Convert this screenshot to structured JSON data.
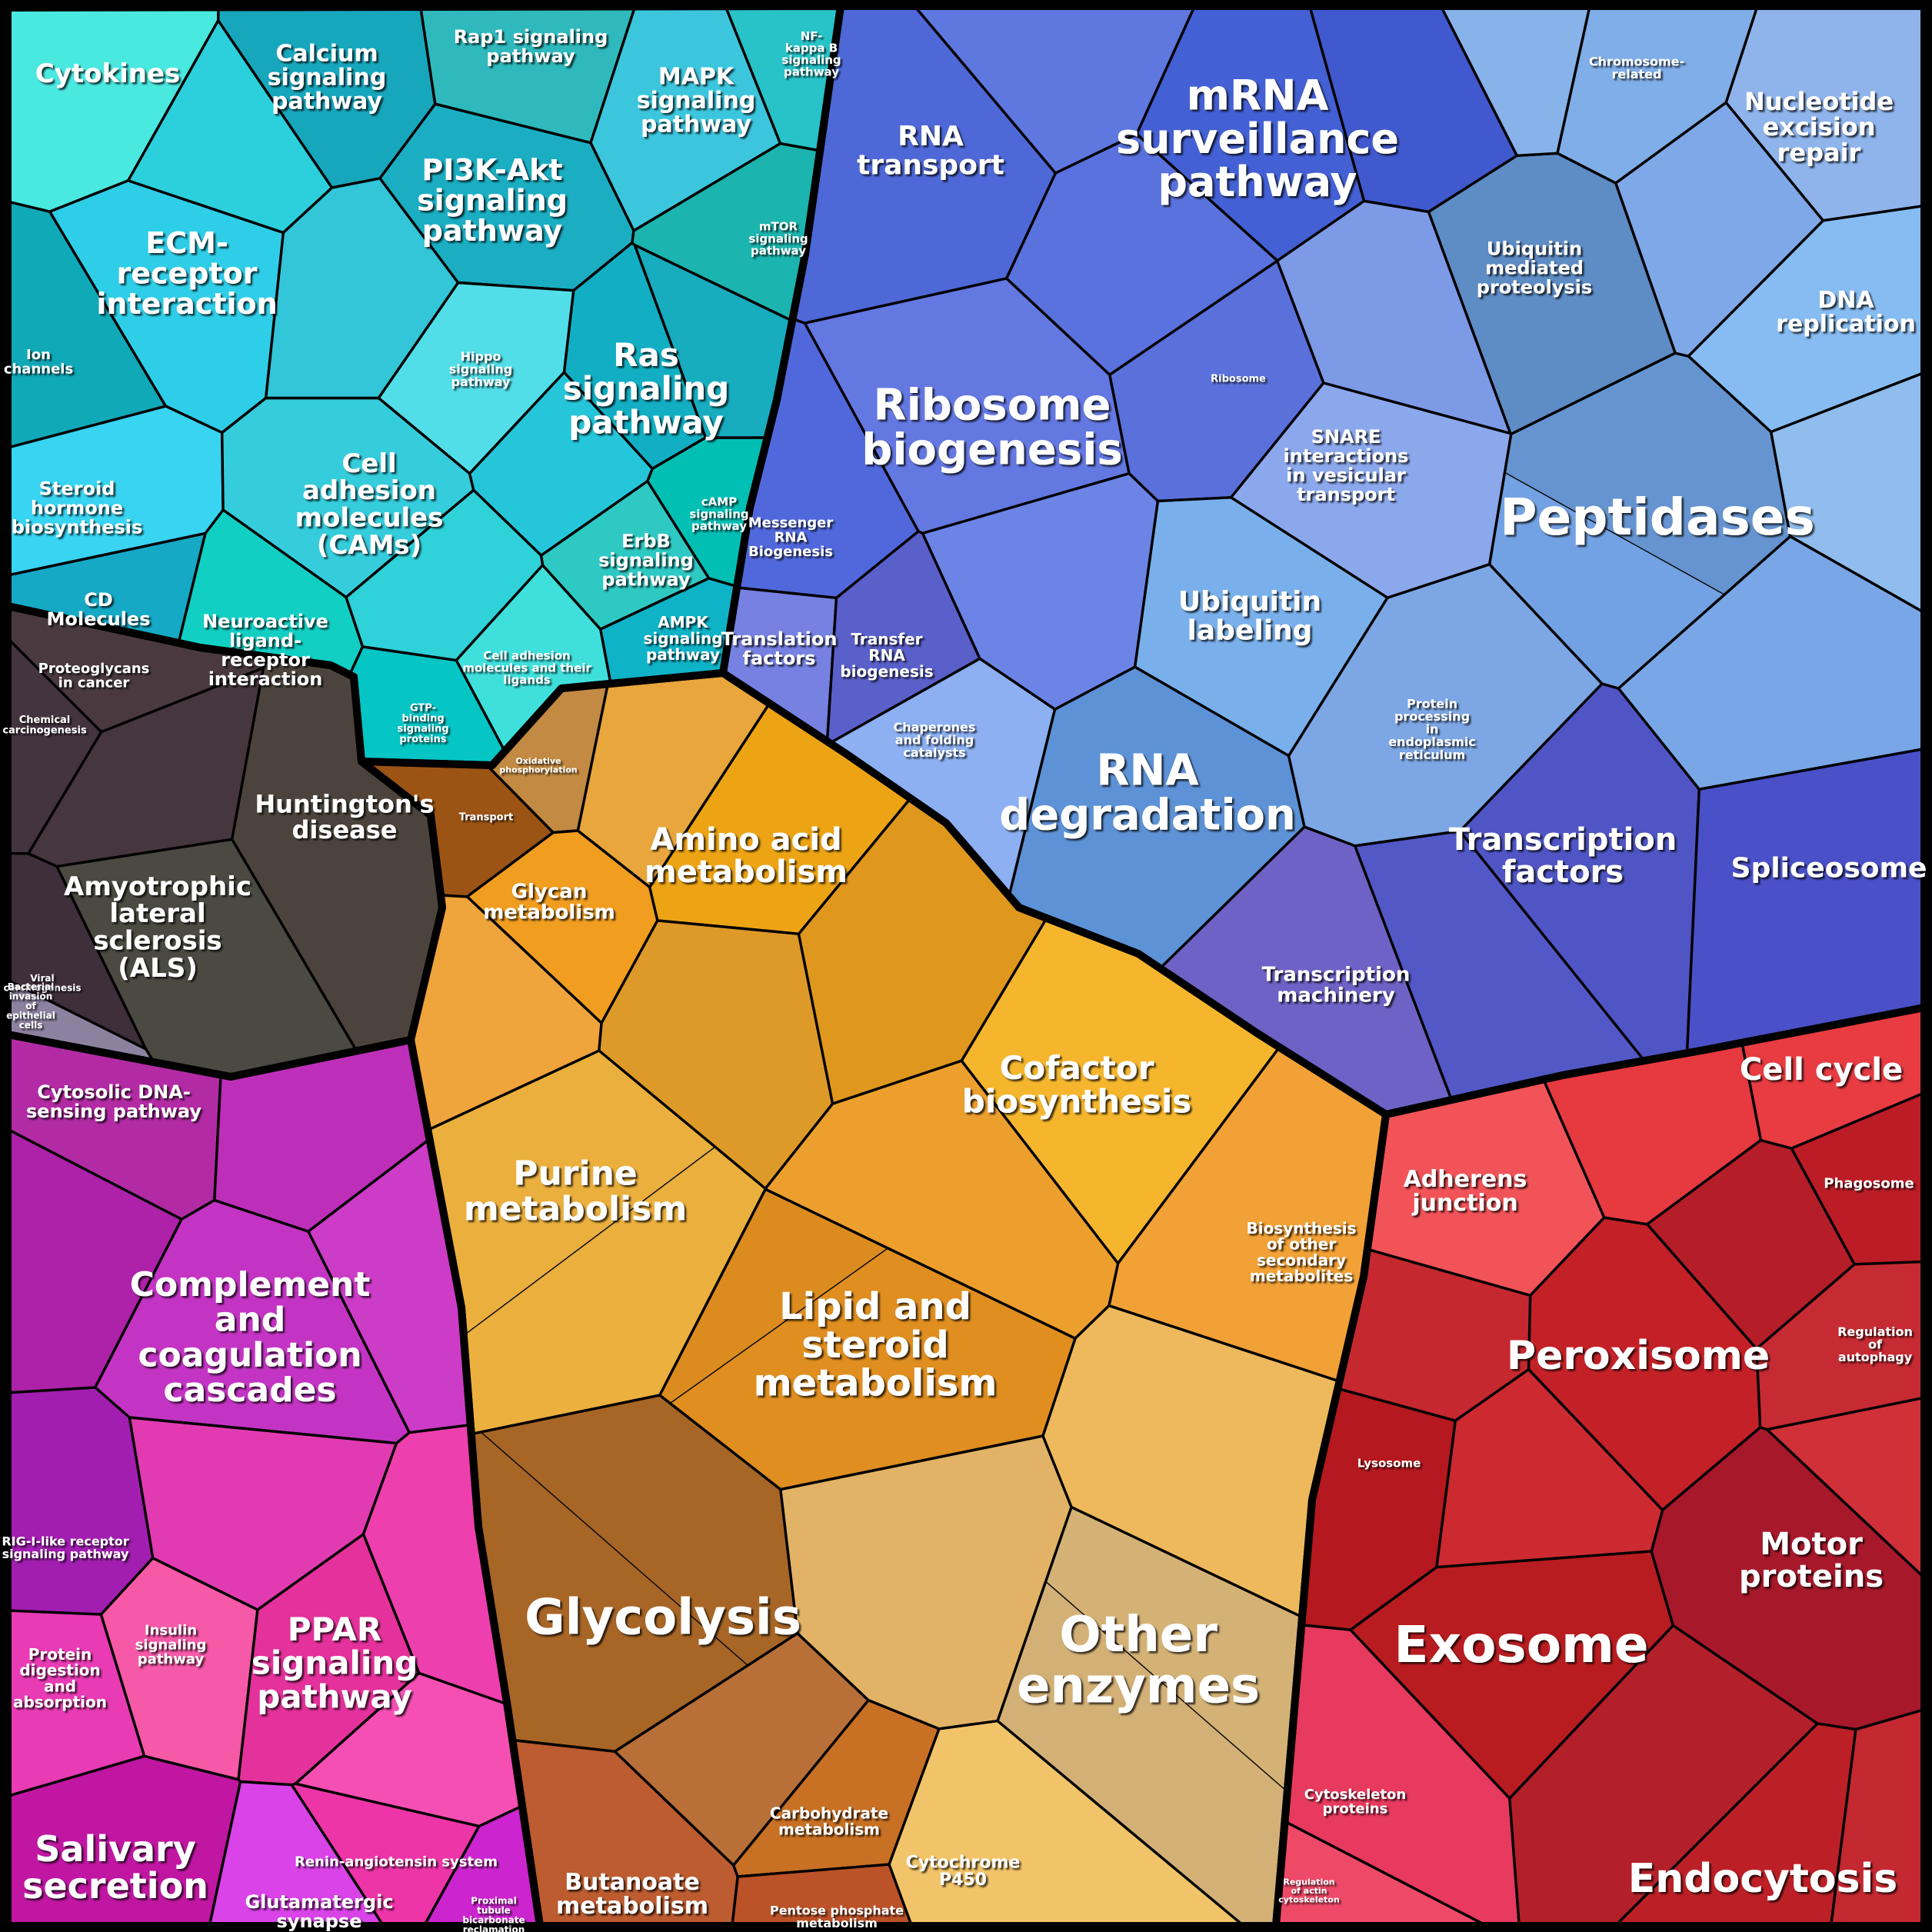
{
  "chart_data": {
    "type": "treemap",
    "subtype": "voronoi-treemap",
    "background": "#000000",
    "cell_border_color": "#000000",
    "label_color": "#ffffff",
    "legend": "none",
    "groups": [
      {
        "id": "g1",
        "base_color": "#18B8CC",
        "cells": [
          {
            "id": "cytokines",
            "label": "Cytokines",
            "color": "#49E9E0"
          },
          {
            "id": "calcium",
            "label": "Calcium\nsignaling\npathway",
            "color": "#17A7BD"
          },
          {
            "id": "rap1",
            "label": "Rap1 signaling\npathway",
            "color": "#2FB9BD"
          },
          {
            "id": "mapk",
            "label": "MAPK\nsignaling\npathway",
            "color": "#3CC6DE"
          },
          {
            "id": "nfkb",
            "label": "NF-\nkappa B\nsignaling\npathway",
            "color": "#28C3C8"
          },
          {
            "id": "pi3k",
            "label": "PI3K-Akt\nsignaling\npathway",
            "color": "#1BAEC3"
          },
          {
            "id": "ecm",
            "label": "ECM-\nreceptor\ninteraction",
            "color": "#2FCEE8"
          },
          {
            "id": "ion",
            "label": "Ion\nchannels",
            "color": "#10A9B8"
          },
          {
            "id": "hippo",
            "label": "Hippo\nsignaling\npathway",
            "color": "#52DEE8"
          },
          {
            "id": "ras",
            "label": "Ras\nsignaling\npathway",
            "color": "#12AFC4"
          },
          {
            "id": "mtor",
            "label": "mTOR\nsignaling\npathway",
            "color": "#1CB4AE"
          },
          {
            "id": "steroid",
            "label": "Steroid\nhormone\nbiosynthesis",
            "color": "#38D4F2"
          },
          {
            "id": "cams",
            "label": "Cell\nadhesion\nmolecules\n(CAMs)",
            "color": "#35CCDC"
          },
          {
            "id": "camp",
            "label": "cAMP\nsignaling\npathway",
            "color": "#02BFB4"
          },
          {
            "id": "erbb",
            "label": "ErbB\nsignaling\npathway",
            "color": "#2FC9C4"
          },
          {
            "id": "cdmol",
            "label": "CD\nMolecules",
            "color": "#16A9C6"
          },
          {
            "id": "neuro",
            "label": "Neuroactive\nligand-\nreceptor\ninteraction",
            "color": "#12CFC4"
          },
          {
            "id": "ampk",
            "label": "AMPK\nsignaling\npathway",
            "color": "#0FB3C8"
          },
          {
            "id": "camlig",
            "label": "Cell adhesion\nmolecules and their\nligands",
            "color": "#3FE0DC"
          },
          {
            "id": "gtp",
            "label": "GTP-\nbinding\nsignaling\nproteins",
            "color": "#06C5C5"
          },
          {
            "id": "t1",
            "label": "",
            "color": "#2BD0DC"
          },
          {
            "id": "t2",
            "label": "",
            "color": "#33C5D8"
          },
          {
            "id": "t3",
            "label": "",
            "color": "#26C6DA"
          },
          {
            "id": "t4",
            "label": "",
            "color": "#17ACBE"
          },
          {
            "id": "t6",
            "label": "",
            "color": "#2ED2D8"
          }
        ]
      },
      {
        "id": "g2",
        "base_color": "#5E7CDC",
        "cells": [
          {
            "id": "rnatransport",
            "label": "RNA\ntransport",
            "color": "#4E68D8"
          },
          {
            "id": "mrnasurv",
            "label": "mRNA\nsurveillance\npathway",
            "color": "#4360D4"
          },
          {
            "id": "chromosome",
            "label": "Chromosome-\nrelated",
            "color": "#7FAEE8"
          },
          {
            "id": "ner",
            "label": "Nucleotide\nexcision\nrepair",
            "color": "#8FB4EC"
          },
          {
            "id": "ump",
            "label": "Ubiquitin\nmediated\nproteolysis",
            "color": "#5E8CC4"
          },
          {
            "id": "dnarep",
            "label": "DNA\nreplication",
            "color": "#86BCF2"
          },
          {
            "id": "ribosomebio",
            "label": "Ribosome\nbiogenesis",
            "color": "#6478E2"
          },
          {
            "id": "ribosome",
            "label": "Ribosome",
            "color": "#5A70DA"
          },
          {
            "id": "snare",
            "label": "SNARE\ninteractions\nin vesicular\ntransport",
            "color": "#8CA8EC"
          },
          {
            "id": "peptidases",
            "label": "Peptidases",
            "color": "#6FA0E2"
          },
          {
            "id": "ubiqlabel",
            "label": "Ubiquitin\nlabeling",
            "color": "#79B0EC"
          },
          {
            "id": "mrnabio",
            "label": "Messenger\nRNA\nBiogenesis",
            "color": "#5168DC"
          },
          {
            "id": "transfactors",
            "label": "Translation\nfactors",
            "color": "#7681E2"
          },
          {
            "id": "trna",
            "label": "Transfer\nRNA\nbiogenesis",
            "color": "#5A60CA"
          },
          {
            "id": "chaperones",
            "label": "Chaperones\nand folding\ncatalysts",
            "color": "#8CB0F2"
          },
          {
            "id": "rnadeg",
            "label": "RNA\ndegradation",
            "color": "#5D92D6"
          },
          {
            "id": "ppser",
            "label": "Protein\nprocessing\nin\nendoplasmic\nreticulum",
            "color": "#7CA6E4"
          },
          {
            "id": "tfactors",
            "label": "Transcription\nfactors",
            "color": "#4F55C5"
          },
          {
            "id": "spliceosome",
            "label": "Spliceosome",
            "color": "#4A50C8"
          },
          {
            "id": "tmachinery",
            "label": "Transcription\nmachinery",
            "color": "#6E62C6"
          },
          {
            "id": "b1",
            "label": "",
            "color": "#5E78E0"
          },
          {
            "id": "b2",
            "label": "",
            "color": "#5A72DE"
          },
          {
            "id": "b3",
            "label": "",
            "color": "#4059CE"
          },
          {
            "id": "b4",
            "label": "",
            "color": "#87B2EA"
          },
          {
            "id": "b5",
            "label": "",
            "color": "#7FA8E8"
          },
          {
            "id": "b6",
            "label": "",
            "color": "#90BCEE"
          },
          {
            "id": "b7",
            "label": "",
            "color": "#7D9AE6"
          },
          {
            "id": "b8",
            "label": "",
            "color": "#6C84E6"
          },
          {
            "id": "b9",
            "label": "",
            "color": "#5258C6"
          },
          {
            "id": "b10",
            "label": "",
            "color": "#79A6E6"
          }
        ]
      },
      {
        "id": "g3",
        "base_color": "#4A4040",
        "cells": [
          {
            "id": "proteoglycans",
            "label": "Proteoglycans\nin cancer",
            "color": "#4A3A40"
          },
          {
            "id": "chemcarc",
            "label": "Chemical\ncarcinogenesis",
            "color": "#443440"
          },
          {
            "id": "viralcarc",
            "label": "Viral\ncarcinogenesis",
            "color": "#3E2F3A"
          },
          {
            "id": "huntington",
            "label": "Huntington's\ndisease",
            "color": "#4C443C"
          },
          {
            "id": "als",
            "label": "Amyotrophic\nlateral\nsclerosis\n(ALS)",
            "color": "#4A4A42"
          },
          {
            "id": "bacterial",
            "label": "Bacterial\ninvasion\nof\nepithelial\ncells",
            "color": "#8C82A0"
          },
          {
            "id": "d1",
            "label": "",
            "color": "#46363E"
          }
        ]
      },
      {
        "id": "g4",
        "base_color": "#E8A024",
        "cells": [
          {
            "id": "oxphos",
            "label": "Oxidative\nphosphorylation",
            "color": "#C28A42"
          },
          {
            "id": "transport",
            "label": "Transport",
            "color": "#9C5414"
          },
          {
            "id": "glycan",
            "label": "Glycan\nmetabolism",
            "color": "#F09D20"
          },
          {
            "id": "aminoacid",
            "label": "Amino acid\nmetabolism",
            "color": "#EDA414"
          },
          {
            "id": "purine",
            "label": "Purine\nmetabolism",
            "color": "#EDB13E"
          },
          {
            "id": "cofactor",
            "label": "Cofactor\nbiosynthesis",
            "color": "#F5B62E"
          },
          {
            "id": "lipid",
            "label": "Lipid and\nsteroid\nmetabolism",
            "color": "#E89420"
          },
          {
            "id": "biosynother",
            "label": "Biosynthesis\nof other\nsecondary\nmetabolites",
            "color": "#F2A136"
          },
          {
            "id": "glycolysis",
            "label": "Glycolysis",
            "color": "#B06B28"
          },
          {
            "id": "butanoate",
            "label": "Butanoate\nmetabolism",
            "color": "#BC5C30"
          },
          {
            "id": "carbmet",
            "label": "Carbohydrate\nmetabolism",
            "color": "#C87024"
          },
          {
            "id": "pentose",
            "label": "Pentose phosphate\nmetabolism",
            "color": "#BC5228"
          },
          {
            "id": "cyp450",
            "label": "Cytochrome\nP450",
            "color": "#F2C469"
          },
          {
            "id": "otherenz",
            "label": "Other\nenzymes",
            "color": "#E9C382"
          },
          {
            "id": "o1",
            "label": "",
            "color": "#E8A63C"
          },
          {
            "id": "o2",
            "label": "",
            "color": "#F0A43C"
          },
          {
            "id": "o3",
            "label": "",
            "color": "#DE9A28"
          },
          {
            "id": "o4",
            "label": "",
            "color": "#E0971E"
          },
          {
            "id": "o5",
            "label": "",
            "color": "#ED9F2E"
          },
          {
            "id": "o6",
            "label": "",
            "color": "#EEB95C"
          },
          {
            "id": "o7",
            "label": "",
            "color": "#B87038"
          },
          {
            "id": "o8",
            "label": "",
            "color": "#E2B366"
          }
        ]
      },
      {
        "id": "g5",
        "base_color": "#C42CB4",
        "cells": [
          {
            "id": "cytosolicdna",
            "label": "Cytosolic DNA-\nsensing pathway",
            "color": "#B32BA4"
          },
          {
            "id": "complement",
            "label": "Complement\nand\ncoagulation\ncascades",
            "color": "#C434C4"
          },
          {
            "id": "rigi",
            "label": "RIG-I-like receptor\nsignaling pathway",
            "color": "#A21EB0"
          },
          {
            "id": "proteindig",
            "label": "Protein\ndigestion\nand\nabsorption",
            "color": "#E93BB4"
          },
          {
            "id": "insulin",
            "label": "Insulin\nsignaling\npathway",
            "color": "#F659A8"
          },
          {
            "id": "ppar",
            "label": "PPAR\nsignaling\npathway",
            "color": "#E4319B"
          },
          {
            "id": "salivary",
            "label": "Salivary\nsecretion",
            "color": "#C016A2"
          },
          {
            "id": "renin",
            "label": "Renin-angiotensin system",
            "color": "#ED35A8"
          },
          {
            "id": "glutamatergic",
            "label": "Glutamatergic\nsynapse",
            "color": "#D943E8"
          },
          {
            "id": "proximal",
            "label": "Proximal\ntubule\nbicarbonate\nreclamation",
            "color": "#CC24CE"
          },
          {
            "id": "m1",
            "label": "",
            "color": "#AD22A8"
          },
          {
            "id": "m2",
            "label": "",
            "color": "#BD2FB8"
          },
          {
            "id": "m3",
            "label": "",
            "color": "#CC3CC6"
          },
          {
            "id": "m4",
            "label": "",
            "color": "#E23BB2"
          },
          {
            "id": "m5",
            "label": "",
            "color": "#F54FB4"
          },
          {
            "id": "m6",
            "label": "",
            "color": "#EE3FAE"
          }
        ]
      },
      {
        "id": "g6",
        "base_color": "#C22228",
        "cells": [
          {
            "id": "cellcycle",
            "label": "Cell cycle",
            "color": "#E83B42"
          },
          {
            "id": "adherens",
            "label": "Adherens\njunction",
            "color": "#F25358"
          },
          {
            "id": "phagosome",
            "label": "Phagosome",
            "color": "#BC1C26"
          },
          {
            "id": "regautophagy",
            "label": "Regulation\nof\nautophagy",
            "color": "#C62A32"
          },
          {
            "id": "peroxisome",
            "label": "Peroxisome",
            "color": "#C32127"
          },
          {
            "id": "lysosome",
            "label": "Lysosome",
            "color": "#B5181E"
          },
          {
            "id": "exosome",
            "label": "Exosome",
            "color": "#B81C20"
          },
          {
            "id": "motor",
            "label": "Motor\nproteins",
            "color": "#A6182A"
          },
          {
            "id": "cytoskel",
            "label": "Cytoskeleton\nproteins",
            "color": "#E8395E"
          },
          {
            "id": "regactin",
            "label": "Regulation\nof actin\ncytoskeleton",
            "color": "#EE4A68"
          },
          {
            "id": "endocytosis",
            "label": "Endocytosis",
            "color": "#BC2026"
          },
          {
            "id": "r1",
            "label": "",
            "color": "#E63940"
          },
          {
            "id": "r2",
            "label": "",
            "color": "#B51E28"
          },
          {
            "id": "r3",
            "label": "",
            "color": "#C62830"
          },
          {
            "id": "r4",
            "label": "",
            "color": "#CC2A30"
          },
          {
            "id": "r5",
            "label": "",
            "color": "#D03038"
          },
          {
            "id": "r6",
            "label": "",
            "color": "#B3202A"
          },
          {
            "id": "r7",
            "label": "",
            "color": "#C42830"
          }
        ]
      }
    ]
  }
}
